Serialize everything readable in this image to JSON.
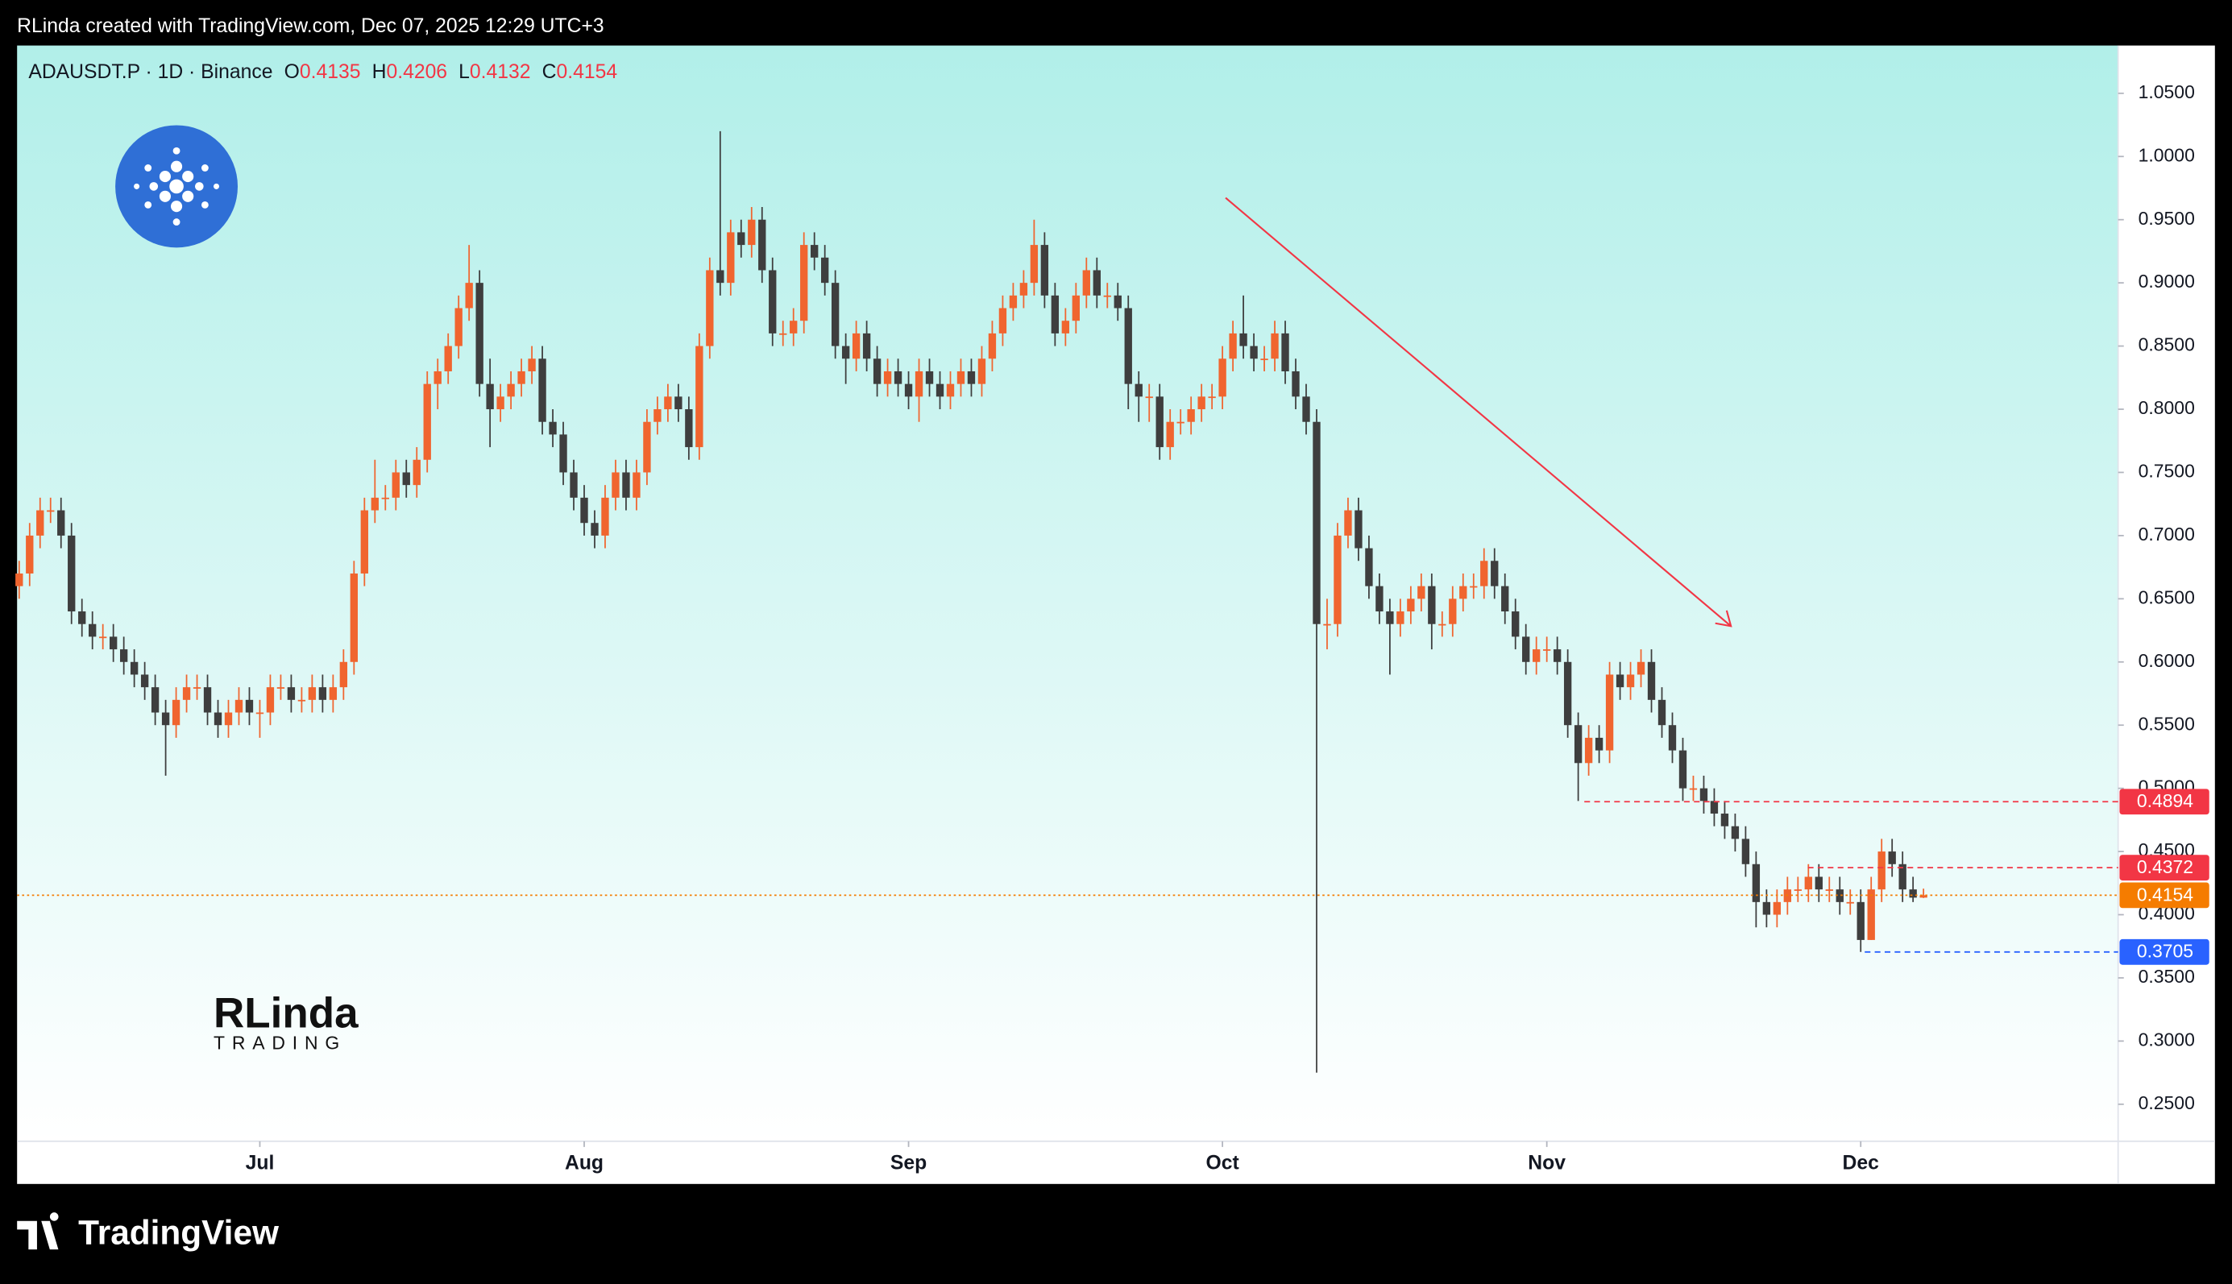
{
  "header": {
    "text": "RLinda created with TradingView.com, Dec 07, 2025 12:29 UTC+3"
  },
  "footer": {
    "brand": "TradingView"
  },
  "watermark": {
    "name": "RLinda",
    "sub": "TRADING"
  },
  "chart_data": {
    "type": "candlestick",
    "legend_title": "ADAUSDT.P · 1D · Binance",
    "ohlc_labels": [
      "O",
      "H",
      "L",
      "C"
    ],
    "up_color": "#f0652f",
    "down_color": "#3e3e3e",
    "open": [
      0.66,
      0.67,
      0.7,
      0.72,
      0.72,
      0.7,
      0.64,
      0.63,
      0.62,
      0.62,
      0.61,
      0.6,
      0.59,
      0.58,
      0.56,
      0.55,
      0.57,
      0.58,
      0.58,
      0.56,
      0.55,
      0.56,
      0.57,
      0.56,
      0.56,
      0.58,
      0.58,
      0.57,
      0.57,
      0.58,
      0.57,
      0.58,
      0.6,
      0.67,
      0.72,
      0.73,
      0.73,
      0.75,
      0.74,
      0.76,
      0.82,
      0.83,
      0.85,
      0.88,
      0.9,
      0.82,
      0.8,
      0.81,
      0.82,
      0.83,
      0.84,
      0.79,
      0.78,
      0.75,
      0.73,
      0.71,
      0.7,
      0.73,
      0.75,
      0.73,
      0.75,
      0.79,
      0.8,
      0.81,
      0.8,
      0.77,
      0.85,
      0.91,
      0.9,
      0.94,
      0.93,
      0.95,
      0.91,
      0.86,
      0.86,
      0.87,
      0.93,
      0.92,
      0.9,
      0.85,
      0.84,
      0.86,
      0.84,
      0.82,
      0.83,
      0.82,
      0.81,
      0.83,
      0.82,
      0.81,
      0.82,
      0.83,
      0.82,
      0.84,
      0.86,
      0.88,
      0.89,
      0.9,
      0.93,
      0.89,
      0.86,
      0.87,
      0.89,
      0.91,
      0.89,
      0.89,
      0.88,
      0.82,
      0.81,
      0.81,
      0.77,
      0.79,
      0.79,
      0.8,
      0.81,
      0.81,
      0.84,
      0.86,
      0.85,
      0.84,
      0.84,
      0.86,
      0.83,
      0.81,
      0.79,
      0.63,
      0.63,
      0.7,
      0.72,
      0.69,
      0.66,
      0.64,
      0.63,
      0.64,
      0.65,
      0.66,
      0.63,
      0.63,
      0.65,
      0.66,
      0.66,
      0.68,
      0.66,
      0.64,
      0.62,
      0.6,
      0.61,
      0.61,
      0.6,
      0.55,
      0.52,
      0.54,
      0.53,
      0.59,
      0.58,
      0.59,
      0.6,
      0.57,
      0.55,
      0.53,
      0.5,
      0.5,
      0.49,
      0.48,
      0.47,
      0.46,
      0.44,
      0.41,
      0.4,
      0.41,
      0.42,
      0.42,
      0.43,
      0.42,
      0.42,
      0.41,
      0.41,
      0.38,
      0.42,
      0.45,
      0.44,
      0.42,
      0.4135
    ],
    "high": [
      0.68,
      0.71,
      0.73,
      0.73,
      0.73,
      0.71,
      0.65,
      0.64,
      0.63,
      0.63,
      0.62,
      0.61,
      0.6,
      0.59,
      0.57,
      0.58,
      0.59,
      0.59,
      0.59,
      0.57,
      0.57,
      0.58,
      0.58,
      0.57,
      0.59,
      0.59,
      0.59,
      0.58,
      0.59,
      0.59,
      0.59,
      0.61,
      0.68,
      0.73,
      0.76,
      0.74,
      0.76,
      0.76,
      0.77,
      0.83,
      0.84,
      0.86,
      0.89,
      0.93,
      0.91,
      0.84,
      0.82,
      0.83,
      0.84,
      0.85,
      0.85,
      0.8,
      0.79,
      0.76,
      0.74,
      0.72,
      0.74,
      0.76,
      0.76,
      0.76,
      0.8,
      0.81,
      0.82,
      0.82,
      0.81,
      0.86,
      0.92,
      1.02,
      0.95,
      0.95,
      0.96,
      0.96,
      0.92,
      0.87,
      0.88,
      0.94,
      0.94,
      0.93,
      0.91,
      0.86,
      0.87,
      0.87,
      0.85,
      0.84,
      0.84,
      0.83,
      0.84,
      0.84,
      0.83,
      0.83,
      0.84,
      0.84,
      0.85,
      0.87,
      0.89,
      0.9,
      0.91,
      0.95,
      0.94,
      0.9,
      0.88,
      0.9,
      0.92,
      0.92,
      0.9,
      0.9,
      0.89,
      0.83,
      0.82,
      0.82,
      0.8,
      0.8,
      0.81,
      0.82,
      0.82,
      0.85,
      0.87,
      0.89,
      0.86,
      0.85,
      0.87,
      0.87,
      0.84,
      0.82,
      0.8,
      0.65,
      0.71,
      0.73,
      0.73,
      0.7,
      0.67,
      0.65,
      0.65,
      0.66,
      0.67,
      0.67,
      0.64,
      0.66,
      0.67,
      0.67,
      0.69,
      0.69,
      0.67,
      0.65,
      0.63,
      0.62,
      0.62,
      0.62,
      0.61,
      0.56,
      0.55,
      0.55,
      0.6,
      0.6,
      0.6,
      0.61,
      0.61,
      0.58,
      0.56,
      0.54,
      0.51,
      0.51,
      0.5,
      0.49,
      0.48,
      0.47,
      0.45,
      0.42,
      0.42,
      0.43,
      0.43,
      0.44,
      0.44,
      0.43,
      0.43,
      0.42,
      0.42,
      0.43,
      0.46,
      0.46,
      0.45,
      0.43,
      0.4206
    ],
    "low": [
      0.65,
      0.66,
      0.69,
      0.71,
      0.69,
      0.63,
      0.62,
      0.61,
      0.61,
      0.6,
      0.59,
      0.58,
      0.57,
      0.55,
      0.51,
      0.54,
      0.56,
      0.57,
      0.55,
      0.54,
      0.54,
      0.55,
      0.55,
      0.54,
      0.55,
      0.57,
      0.56,
      0.56,
      0.56,
      0.56,
      0.56,
      0.57,
      0.59,
      0.66,
      0.71,
      0.72,
      0.72,
      0.73,
      0.73,
      0.75,
      0.8,
      0.82,
      0.84,
      0.87,
      0.81,
      0.77,
      0.79,
      0.8,
      0.81,
      0.82,
      0.78,
      0.77,
      0.74,
      0.72,
      0.7,
      0.69,
      0.69,
      0.72,
      0.72,
      0.72,
      0.74,
      0.78,
      0.79,
      0.79,
      0.76,
      0.76,
      0.84,
      0.89,
      0.89,
      0.92,
      0.92,
      0.9,
      0.85,
      0.85,
      0.85,
      0.86,
      0.91,
      0.89,
      0.84,
      0.82,
      0.83,
      0.83,
      0.81,
      0.81,
      0.81,
      0.8,
      0.79,
      0.81,
      0.8,
      0.8,
      0.81,
      0.81,
      0.81,
      0.83,
      0.85,
      0.87,
      0.88,
      0.89,
      0.88,
      0.85,
      0.85,
      0.86,
      0.88,
      0.88,
      0.88,
      0.87,
      0.8,
      0.79,
      0.79,
      0.76,
      0.76,
      0.78,
      0.78,
      0.79,
      0.8,
      0.8,
      0.83,
      0.84,
      0.83,
      0.83,
      0.83,
      0.82,
      0.8,
      0.78,
      0.275,
      0.61,
      0.62,
      0.69,
      0.68,
      0.65,
      0.63,
      0.59,
      0.62,
      0.63,
      0.64,
      0.61,
      0.62,
      0.62,
      0.64,
      0.65,
      0.65,
      0.65,
      0.63,
      0.61,
      0.59,
      0.59,
      0.6,
      0.59,
      0.54,
      0.49,
      0.51,
      0.52,
      0.52,
      0.57,
      0.57,
      0.58,
      0.56,
      0.54,
      0.52,
      0.49,
      0.49,
      0.48,
      0.47,
      0.46,
      0.45,
      0.43,
      0.39,
      0.39,
      0.39,
      0.4,
      0.41,
      0.41,
      0.41,
      0.41,
      0.4,
      0.4,
      0.3705,
      0.38,
      0.41,
      0.43,
      0.41,
      0.41,
      0.4132
    ],
    "close": [
      0.67,
      0.7,
      0.72,
      0.72,
      0.7,
      0.64,
      0.63,
      0.62,
      0.62,
      0.61,
      0.6,
      0.59,
      0.58,
      0.56,
      0.55,
      0.57,
      0.58,
      0.58,
      0.56,
      0.55,
      0.56,
      0.57,
      0.56,
      0.56,
      0.58,
      0.58,
      0.57,
      0.57,
      0.58,
      0.57,
      0.58,
      0.6,
      0.67,
      0.72,
      0.73,
      0.73,
      0.75,
      0.74,
      0.76,
      0.82,
      0.83,
      0.85,
      0.88,
      0.9,
      0.82,
      0.8,
      0.81,
      0.82,
      0.83,
      0.84,
      0.79,
      0.78,
      0.75,
      0.73,
      0.71,
      0.7,
      0.73,
      0.75,
      0.73,
      0.75,
      0.79,
      0.8,
      0.81,
      0.8,
      0.77,
      0.85,
      0.91,
      0.9,
      0.94,
      0.93,
      0.95,
      0.91,
      0.86,
      0.86,
      0.87,
      0.93,
      0.92,
      0.9,
      0.85,
      0.84,
      0.86,
      0.84,
      0.82,
      0.83,
      0.82,
      0.81,
      0.83,
      0.82,
      0.81,
      0.82,
      0.83,
      0.82,
      0.84,
      0.86,
      0.88,
      0.89,
      0.9,
      0.93,
      0.89,
      0.86,
      0.87,
      0.89,
      0.91,
      0.89,
      0.89,
      0.88,
      0.82,
      0.81,
      0.81,
      0.77,
      0.79,
      0.79,
      0.8,
      0.81,
      0.81,
      0.84,
      0.86,
      0.85,
      0.84,
      0.84,
      0.86,
      0.83,
      0.81,
      0.79,
      0.63,
      0.63,
      0.7,
      0.72,
      0.69,
      0.66,
      0.64,
      0.63,
      0.64,
      0.65,
      0.66,
      0.63,
      0.63,
      0.65,
      0.66,
      0.66,
      0.68,
      0.66,
      0.64,
      0.62,
      0.6,
      0.61,
      0.61,
      0.6,
      0.55,
      0.52,
      0.54,
      0.53,
      0.59,
      0.58,
      0.59,
      0.6,
      0.57,
      0.55,
      0.53,
      0.5,
      0.5,
      0.49,
      0.48,
      0.47,
      0.46,
      0.44,
      0.41,
      0.4,
      0.41,
      0.42,
      0.42,
      0.43,
      0.42,
      0.42,
      0.41,
      0.41,
      0.38,
      0.42,
      0.45,
      0.44,
      0.42,
      0.4135,
      0.4154
    ],
    "xlim": [
      -0.2,
      200.6
    ],
    "xticks": [
      {
        "value": 23,
        "label": "Jul"
      },
      {
        "value": 54,
        "label": "Aug"
      },
      {
        "value": 85,
        "label": "Sep"
      },
      {
        "value": 115,
        "label": "Oct"
      },
      {
        "value": 146,
        "label": "Nov"
      },
      {
        "value": 176,
        "label": "Dec"
      }
    ],
    "ylim": [
      0.2207,
      1.0878
    ],
    "yticks": [
      {
        "value": 0.25,
        "label": "0.2500"
      },
      {
        "value": 0.3,
        "label": "0.3000"
      },
      {
        "value": 0.35,
        "label": "0.3500"
      },
      {
        "value": 0.4,
        "label": "0.4000"
      },
      {
        "value": 0.45,
        "label": "0.4500"
      },
      {
        "value": 0.5,
        "label": "0.5000"
      },
      {
        "value": 0.55,
        "label": "0.5500"
      },
      {
        "value": 0.6,
        "label": "0.6000"
      },
      {
        "value": 0.65,
        "label": "0.6500"
      },
      {
        "value": 0.7,
        "label": "0.7000"
      },
      {
        "value": 0.75,
        "label": "0.7500"
      },
      {
        "value": 0.8,
        "label": "0.8000"
      },
      {
        "value": 0.85,
        "label": "0.8500"
      },
      {
        "value": 0.9,
        "label": "0.9000"
      },
      {
        "value": 0.95,
        "label": "0.9500"
      },
      {
        "value": 1.0,
        "label": "1.0000"
      },
      {
        "value": 1.05,
        "label": "1.0500"
      }
    ],
    "price_lines": [
      {
        "value": 0.4894,
        "color": "#f23645"
      },
      {
        "value": 0.4372,
        "color": "#f23645"
      },
      {
        "value": 0.4154,
        "color": "#f57c00"
      },
      {
        "value": 0.3705,
        "color": "#2962ff"
      }
    ]
  }
}
